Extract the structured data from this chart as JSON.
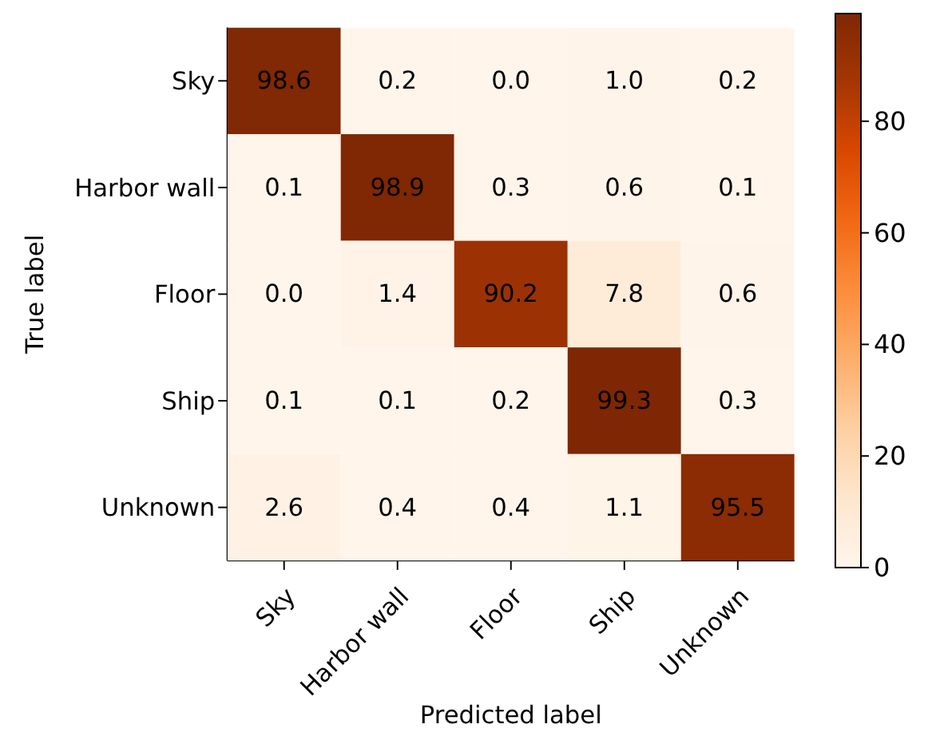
{
  "chart_data": {
    "type": "heatmap",
    "xlabel": "Predicted label",
    "ylabel": "True label",
    "categories": [
      "Sky",
      "Harbor wall",
      "Floor",
      "Ship",
      "Unknown"
    ],
    "y_categories": [
      "Sky",
      "Harbor wall",
      "Floor",
      "Ship",
      "Unknown"
    ],
    "cells": [
      [
        98.6,
        0.2,
        0.0,
        1.0,
        0.2
      ],
      [
        0.1,
        98.9,
        0.3,
        0.6,
        0.1
      ],
      [
        0.0,
        1.4,
        90.2,
        7.8,
        0.6
      ],
      [
        0.1,
        0.1,
        0.2,
        99.3,
        0.3
      ],
      [
        2.6,
        0.4,
        0.4,
        1.1,
        95.5
      ]
    ],
    "cell_labels": [
      [
        "98.6",
        "0.2",
        "0.0",
        "1.0",
        "0.2"
      ],
      [
        "0.1",
        "98.9",
        "0.3",
        "0.6",
        "0.1"
      ],
      [
        "0.0",
        "1.4",
        "90.2",
        "7.8",
        "0.6"
      ],
      [
        "0.1",
        "0.1",
        "0.2",
        "99.3",
        "0.3"
      ],
      [
        "2.6",
        "0.4",
        "0.4",
        "1.1",
        "95.5"
      ]
    ],
    "clim": [
      0,
      99.3
    ],
    "cticks": [
      0,
      20,
      40,
      60,
      80
    ]
  }
}
